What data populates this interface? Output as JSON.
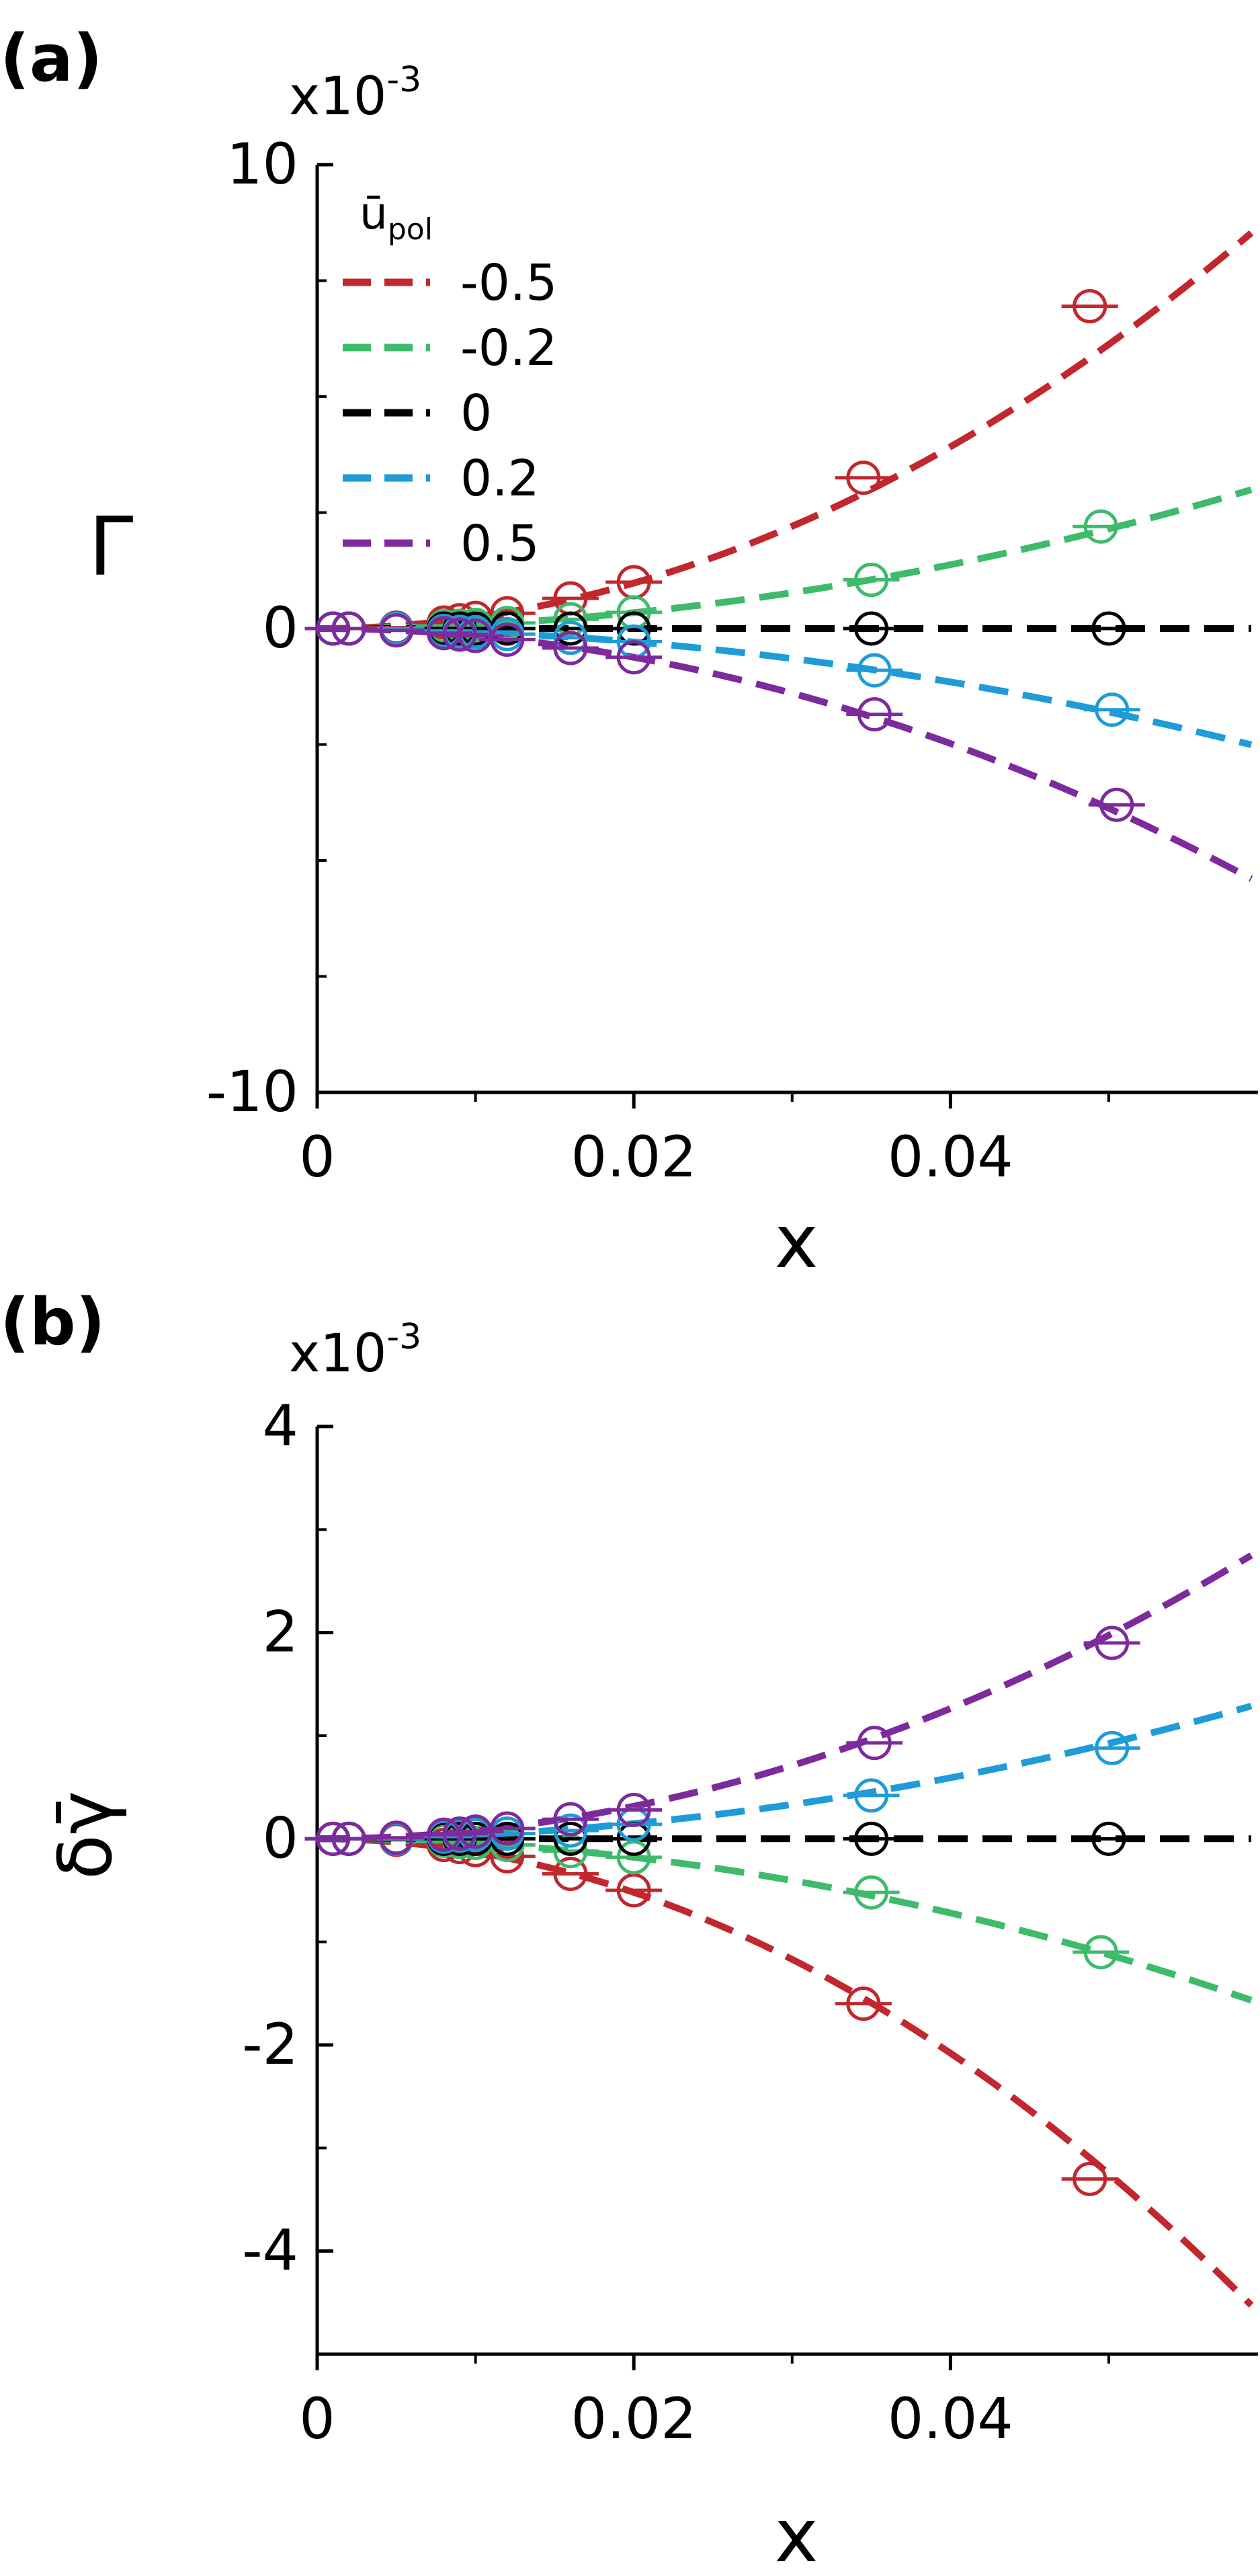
{
  "legend": {
    "title": "ū",
    "title_sub": "pol",
    "placement": "top-left"
  },
  "colors": {
    "-0.5": "#c1272d",
    "-0.2": "#3dbb6b",
    "0": "#000000",
    "0.2": "#1f9bd7",
    "0.5": "#7d2a9c"
  },
  "chart_data": [
    {
      "panel_label": "(a)",
      "type": "line",
      "exponent_label": "x10",
      "exponent_sup": "-3",
      "ylabel": "Γ",
      "xlabel": "x",
      "xlim": [
        0,
        0.059
      ],
      "ylim": [
        -10,
        10
      ],
      "xticks": [
        "0",
        "0.02",
        "0.04"
      ],
      "yticks": [
        "10",
        "0",
        "-10"
      ],
      "series": [
        {
          "name": "-0.5",
          "curve_k": 2.45,
          "points": [
            [
              0.001,
              0
            ],
            [
              0.002,
              0
            ],
            [
              0.005,
              0.02
            ],
            [
              0.008,
              0.13
            ],
            [
              0.009,
              0.18
            ],
            [
              0.01,
              0.23
            ],
            [
              0.012,
              0.33
            ],
            [
              0.016,
              0.65
            ],
            [
              0.02,
              1.0
            ],
            [
              0.0345,
              3.25
            ],
            [
              0.0488,
              6.95
            ]
          ]
        },
        {
          "name": "-0.2",
          "curve_k": 0.86,
          "points": [
            [
              0.001,
              0
            ],
            [
              0.002,
              0
            ],
            [
              0.005,
              0
            ],
            [
              0.008,
              0.05
            ],
            [
              0.009,
              0.06
            ],
            [
              0.01,
              0.08
            ],
            [
              0.012,
              0.12
            ],
            [
              0.016,
              0.2
            ],
            [
              0.02,
              0.35
            ],
            [
              0.035,
              1.05
            ],
            [
              0.0495,
              2.2
            ]
          ]
        },
        {
          "name": "0",
          "curve_k": 0,
          "points": [
            [
              0.001,
              0
            ],
            [
              0.002,
              0
            ],
            [
              0.005,
              0
            ],
            [
              0.008,
              0
            ],
            [
              0.009,
              0
            ],
            [
              0.01,
              0
            ],
            [
              0.012,
              0
            ],
            [
              0.016,
              0
            ],
            [
              0.02,
              0
            ],
            [
              0.035,
              0
            ],
            [
              0.05,
              0
            ]
          ]
        },
        {
          "name": "0.2",
          "curve_k": -0.72,
          "points": [
            [
              0.001,
              0
            ],
            [
              0.002,
              0
            ],
            [
              0.005,
              0
            ],
            [
              0.008,
              -0.05
            ],
            [
              0.009,
              -0.07
            ],
            [
              0.01,
              -0.08
            ],
            [
              0.012,
              -0.12
            ],
            [
              0.016,
              -0.2
            ],
            [
              0.02,
              -0.28
            ],
            [
              0.0352,
              -0.9
            ],
            [
              0.0502,
              -1.75
            ]
          ]
        },
        {
          "name": "0.5",
          "curve_k": -1.55,
          "points": [
            [
              0.001,
              0
            ],
            [
              0.002,
              0
            ],
            [
              0.005,
              -0.04
            ],
            [
              0.008,
              -0.1
            ],
            [
              0.009,
              -0.13
            ],
            [
              0.01,
              -0.16
            ],
            [
              0.012,
              -0.24
            ],
            [
              0.016,
              -0.42
            ],
            [
              0.02,
              -0.62
            ],
            [
              0.0352,
              -1.85
            ],
            [
              0.0505,
              -3.8
            ]
          ]
        }
      ]
    },
    {
      "panel_label": "(b)",
      "type": "line",
      "exponent_label": "x10",
      "exponent_sup": "-3",
      "ylabel": "δγ̄",
      "xlabel": "x",
      "xlim": [
        0,
        0.059
      ],
      "ylim": [
        -5,
        4
      ],
      "xticks": [
        "0",
        "0.02",
        "0.04"
      ],
      "yticks": [
        "4",
        "2",
        "0",
        "-2",
        "-4"
      ],
      "series": [
        {
          "name": "-0.5",
          "curve_k": -1.3,
          "points": [
            [
              0.001,
              0
            ],
            [
              0.002,
              0
            ],
            [
              0.005,
              -0.01
            ],
            [
              0.008,
              -0.06
            ],
            [
              0.009,
              -0.08
            ],
            [
              0.01,
              -0.11
            ],
            [
              0.012,
              -0.17
            ],
            [
              0.016,
              -0.34
            ],
            [
              0.02,
              -0.5
            ],
            [
              0.0345,
              -1.6
            ],
            [
              0.0488,
              -3.3
            ]
          ]
        },
        {
          "name": "-0.2",
          "curve_k": -0.45,
          "points": [
            [
              0.001,
              0
            ],
            [
              0.002,
              0
            ],
            [
              0.005,
              0
            ],
            [
              0.008,
              -0.02
            ],
            [
              0.009,
              -0.03
            ],
            [
              0.01,
              -0.04
            ],
            [
              0.012,
              -0.06
            ],
            [
              0.016,
              -0.12
            ],
            [
              0.02,
              -0.18
            ],
            [
              0.035,
              -0.52
            ],
            [
              0.0495,
              -1.1
            ]
          ]
        },
        {
          "name": "0",
          "curve_k": 0,
          "points": [
            [
              0.001,
              0
            ],
            [
              0.002,
              0
            ],
            [
              0.005,
              0
            ],
            [
              0.008,
              0
            ],
            [
              0.009,
              0
            ],
            [
              0.01,
              0
            ],
            [
              0.012,
              0
            ],
            [
              0.016,
              0
            ],
            [
              0.02,
              0
            ],
            [
              0.035,
              0
            ],
            [
              0.05,
              0
            ]
          ]
        },
        {
          "name": "0.2",
          "curve_k": 0.37,
          "points": [
            [
              0.001,
              0
            ],
            [
              0.002,
              0
            ],
            [
              0.005,
              0
            ],
            [
              0.008,
              0.02
            ],
            [
              0.009,
              0.03
            ],
            [
              0.01,
              0.04
            ],
            [
              0.012,
              0.05
            ],
            [
              0.016,
              0.08
            ],
            [
              0.02,
              0.14
            ],
            [
              0.035,
              0.42
            ],
            [
              0.0502,
              0.88
            ]
          ]
        },
        {
          "name": "0.5",
          "curve_k": 0.79,
          "points": [
            [
              0.001,
              0
            ],
            [
              0.002,
              0
            ],
            [
              0.005,
              0.01
            ],
            [
              0.008,
              0.04
            ],
            [
              0.009,
              0.05
            ],
            [
              0.01,
              0.07
            ],
            [
              0.012,
              0.1
            ],
            [
              0.016,
              0.19
            ],
            [
              0.02,
              0.28
            ],
            [
              0.0352,
              0.93
            ],
            [
              0.0502,
              1.9
            ]
          ]
        }
      ]
    }
  ]
}
